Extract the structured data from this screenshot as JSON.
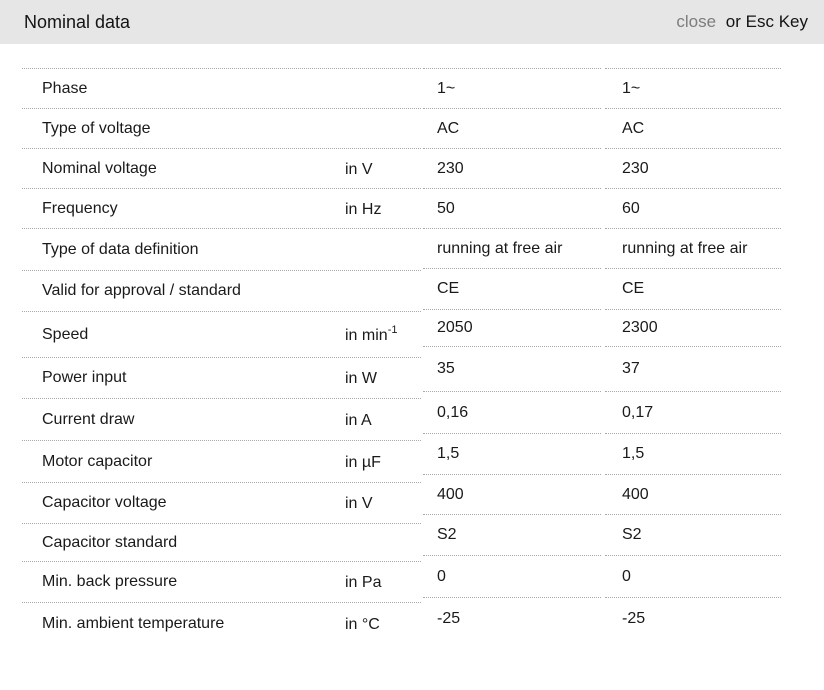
{
  "header": {
    "title": "Nominal data",
    "close_label": "close",
    "esc_hint": "or Esc Key"
  },
  "colors": {
    "header_background": "#e6e6e6",
    "close_link": "#7d7d7d",
    "text": "#1a1a1a",
    "row_divider": "#aaaaaa"
  },
  "table": {
    "rows": [
      {
        "label": "Phase",
        "unit": "",
        "values": [
          "1~",
          "1~"
        ]
      },
      {
        "label": "Type of voltage",
        "unit": "",
        "values": [
          "AC",
          "AC"
        ]
      },
      {
        "label": "Nominal voltage",
        "unit": "in V",
        "values": [
          "230",
          "230"
        ]
      },
      {
        "label": "Frequency",
        "unit": "in Hz",
        "values": [
          "50",
          "60"
        ]
      },
      {
        "label": "Type of data definition",
        "unit": "",
        "values": [
          "running at free air",
          "running at free air"
        ]
      },
      {
        "label": "Valid for approval / standard",
        "unit": "",
        "values": [
          "CE",
          "CE"
        ]
      },
      {
        "label": "Speed",
        "unit": "in min",
        "unit_sup": "-1",
        "values": [
          "2050",
          "2300"
        ]
      },
      {
        "label": "Power input",
        "unit": "in W",
        "values": [
          "35",
          "37"
        ]
      },
      {
        "label": "Current draw",
        "unit": "in A",
        "values": [
          "0,16",
          "0,17"
        ]
      },
      {
        "label": "Motor capacitor",
        "unit": "in µF",
        "values": [
          "1,5",
          "1,5"
        ]
      },
      {
        "label": "Capacitor voltage",
        "unit": "in V",
        "values": [
          "400",
          "400"
        ]
      },
      {
        "label": "Capacitor standard",
        "unit": "",
        "values": [
          "S2",
          "S2"
        ]
      },
      {
        "label": "Min. back pressure",
        "unit": "in Pa",
        "values": [
          "0",
          "0"
        ]
      },
      {
        "label": "Min. ambient temperature",
        "unit": "in °C",
        "values": [
          "-25",
          "-25"
        ]
      }
    ]
  }
}
